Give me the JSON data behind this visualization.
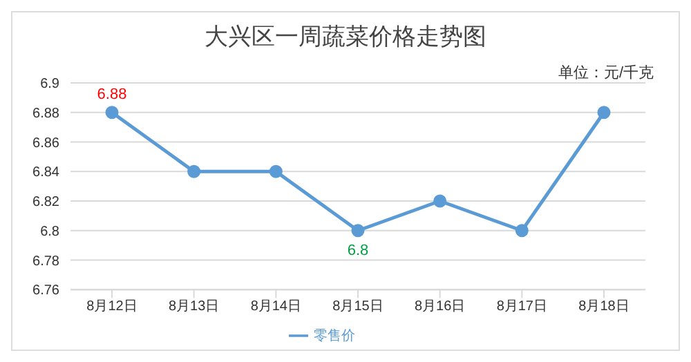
{
  "chart_data": {
    "type": "line",
    "title": "大兴区一周蔬菜价格走势图",
    "categories": [
      "8月12日",
      "8月13日",
      "8月14日",
      "8月15日",
      "8月16日",
      "8月17日",
      "8月18日"
    ],
    "series": [
      {
        "name": "零售价",
        "color": "#5b9bd5",
        "values": [
          6.88,
          6.84,
          6.84,
          6.8,
          6.82,
          6.8,
          6.88
        ]
      }
    ],
    "ylim": [
      6.76,
      6.9
    ],
    "yticks": [
      6.76,
      6.78,
      6.8,
      6.82,
      6.84,
      6.86,
      6.88,
      6.9
    ],
    "annotations": [
      "单位：元/千克",
      {
        "text": "6.88",
        "x": "8月12日",
        "y": 6.88
      },
      {
        "text": "6.8",
        "x": "8月15日",
        "y": 6.8
      }
    ],
    "grid": "y",
    "legend": "bottom",
    "marker": "circle",
    "line_style": "solid"
  }
}
